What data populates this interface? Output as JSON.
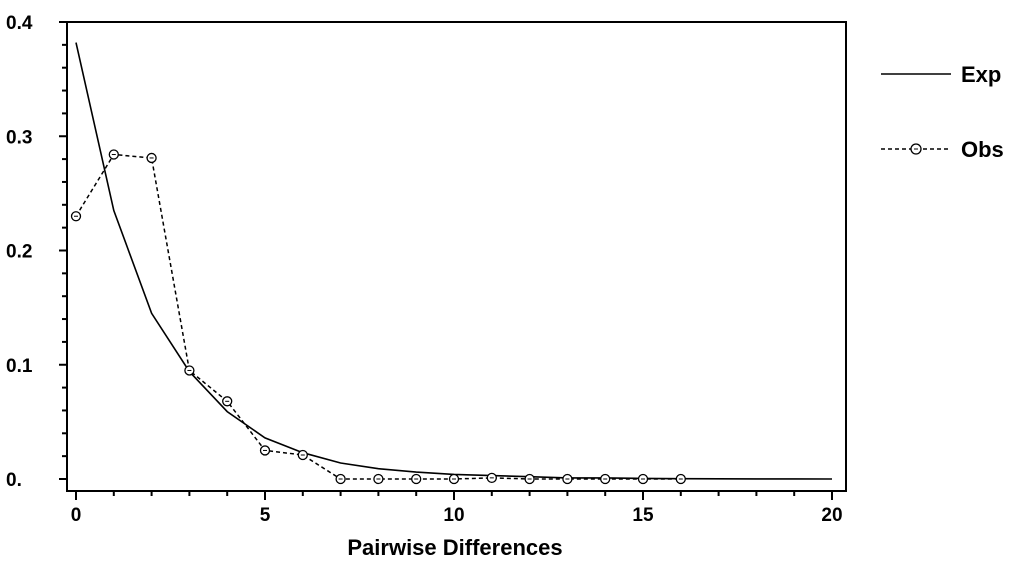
{
  "chart_data": {
    "type": "line",
    "xlabel": "Pairwise Differences",
    "ylabel": "",
    "xlim": [
      0,
      20
    ],
    "ylim": [
      0,
      0.4
    ],
    "xticks": [
      0,
      5,
      10,
      15,
      20
    ],
    "xtick_labels": [
      "0",
      "5",
      "10",
      "15",
      "20"
    ],
    "yticks": [
      0,
      0.1,
      0.2,
      0.3,
      0.4
    ],
    "ytick_labels": [
      "0.",
      "0.1",
      "0.2",
      "0.3",
      "0.4"
    ],
    "grid": false,
    "legend_position": "right",
    "series": [
      {
        "name": "Exp",
        "style": "solid",
        "marker": "none",
        "color": "#000000",
        "x": [
          0,
          1,
          2,
          3,
          4,
          5,
          6,
          7,
          8,
          9,
          10,
          11,
          12,
          13,
          14,
          15,
          16,
          17,
          18,
          19,
          20
        ],
        "y": [
          0.382,
          0.235,
          0.145,
          0.094,
          0.059,
          0.036,
          0.023,
          0.014,
          0.009,
          0.006,
          0.004,
          0.003,
          0.002,
          0.001,
          0.001,
          0.0005,
          0.0003,
          0.0002,
          0.0001,
          0.0001,
          0.0
        ]
      },
      {
        "name": "Obs",
        "style": "dashed",
        "marker": "circle",
        "color": "#000000",
        "x": [
          0,
          1,
          2,
          3,
          4,
          5,
          6,
          7,
          8,
          9,
          10,
          11,
          12,
          13,
          14,
          15,
          16
        ],
        "y": [
          0.23,
          0.284,
          0.281,
          0.095,
          0.068,
          0.025,
          0.021,
          0.0,
          0.0,
          0.0,
          0.0,
          0.001,
          0.0,
          0.0,
          0.0,
          0.0,
          0.0
        ]
      }
    ]
  }
}
